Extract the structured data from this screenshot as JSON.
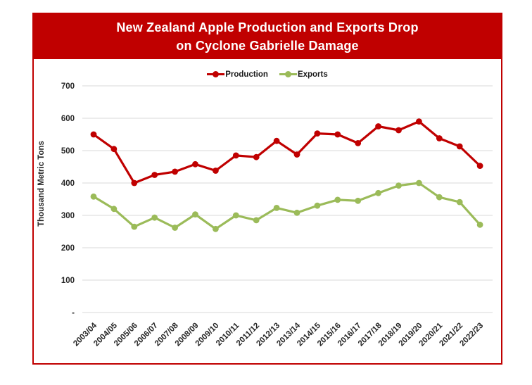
{
  "banner": {
    "line1": "New Zealand Apple Production and Exports Drop",
    "line2": "on Cyclone Gabrielle Damage"
  },
  "chart_data": {
    "type": "line",
    "title": "New Zealand Apple Production and Exports Drop on Cyclone Gabrielle Damage",
    "ylabel": "Thousand Metric Tons",
    "xlabel": "",
    "ylim": [
      0,
      700
    ],
    "ytick_step": 100,
    "ytick_labels": [
      "-",
      "100",
      "200",
      "300",
      "400",
      "500",
      "600",
      "700"
    ],
    "grid": true,
    "legend_position": "top-center",
    "categories": [
      "2003/04",
      "2004/05",
      "2005/06",
      "2006/07",
      "2007/08",
      "2008/09",
      "2009/10",
      "2010/11",
      "2011/12",
      "2012/13",
      "2013/14",
      "2014/15",
      "2015/16",
      "2016/17",
      "2017/18",
      "2018/19",
      "2019/20",
      "2020/21",
      "2021/22",
      "2022/23"
    ],
    "series": [
      {
        "name": "Production",
        "color": "#C00000",
        "values": [
          550,
          505,
          400,
          425,
          435,
          458,
          438,
          485,
          480,
          530,
          488,
          553,
          550,
          523,
          575,
          563,
          590,
          538,
          513,
          453
        ]
      },
      {
        "name": "Exports",
        "color": "#9BBB59",
        "values": [
          358,
          320,
          265,
          293,
          262,
          303,
          258,
          300,
          285,
          323,
          308,
          330,
          348,
          345,
          369,
          392,
          400,
          356,
          341,
          271
        ]
      }
    ],
    "colors": {
      "banner_bg": "#C00000",
      "banner_text": "#FFFFFF",
      "frame_border": "#C00000",
      "gridline": "#D9D9D9",
      "tick_text": "#262626"
    }
  }
}
